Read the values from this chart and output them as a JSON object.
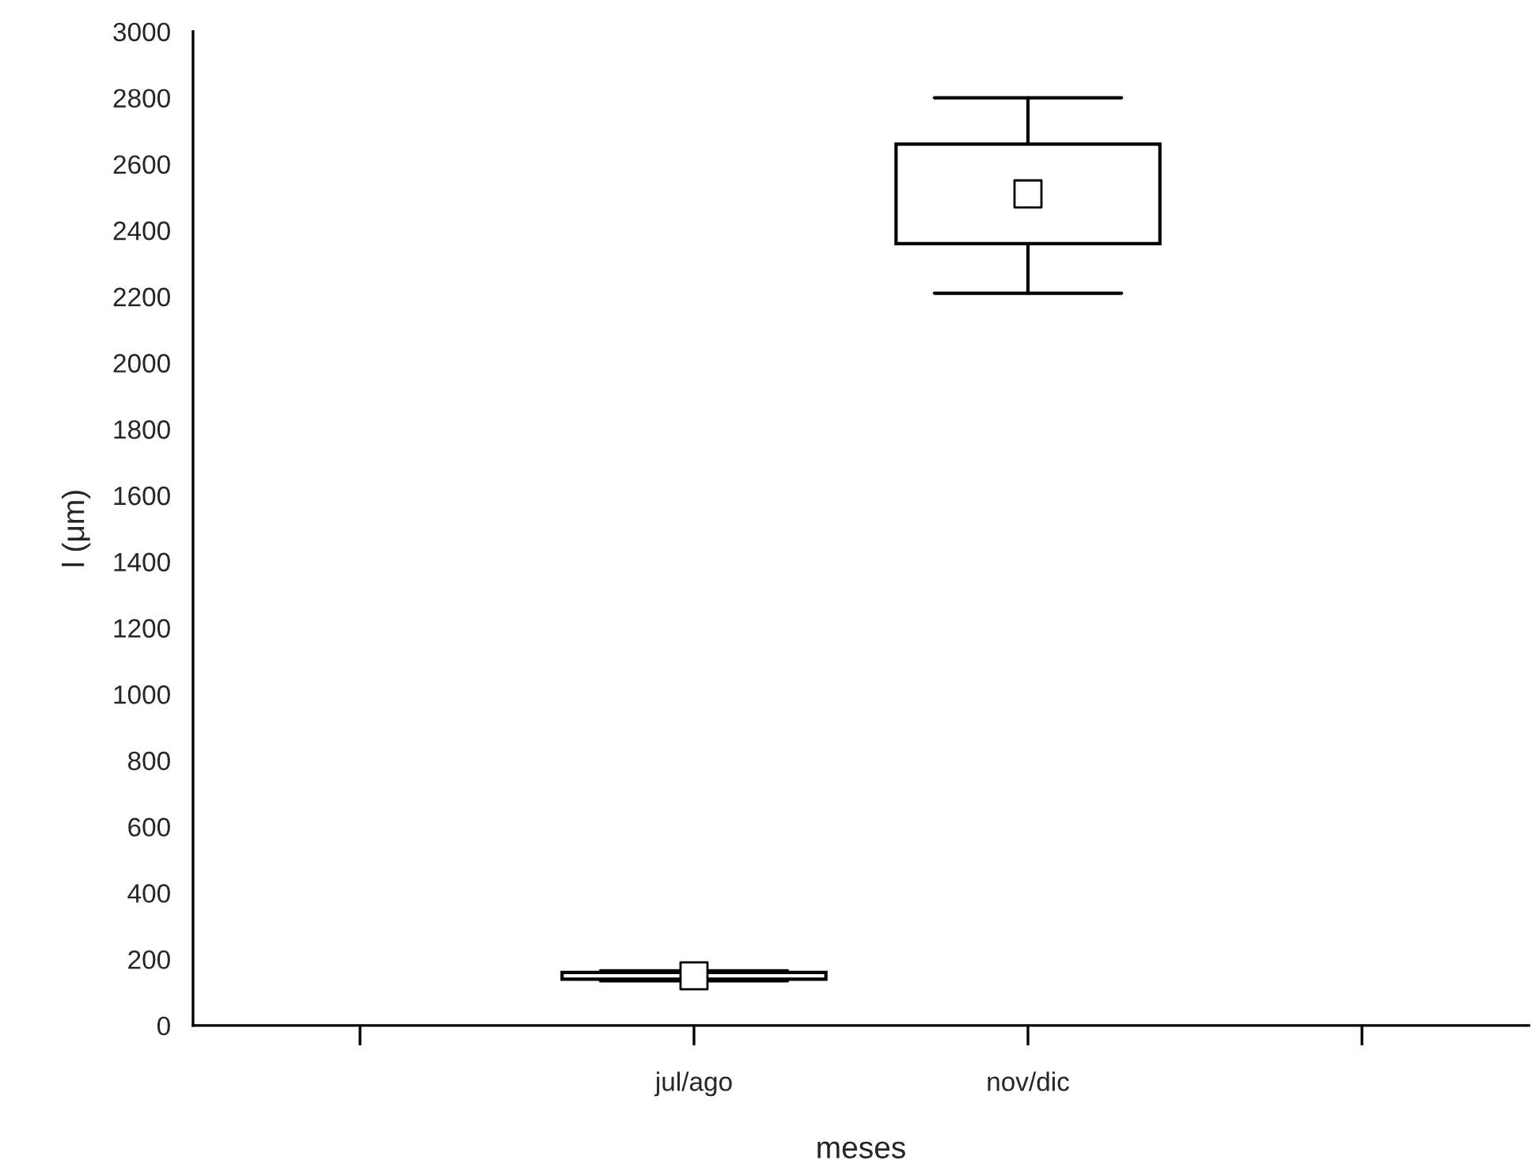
{
  "chart_data": {
    "type": "box",
    "xlabel": "meses",
    "ylabel": "l (μm)",
    "categories": [
      null,
      "jul/ago",
      "nov/dic",
      null
    ],
    "boxes": [
      null,
      {
        "low": 135,
        "q1": 140,
        "q3": 160,
        "high": 165,
        "mean": 150
      },
      {
        "low": 2210,
        "q1": 2360,
        "q3": 2660,
        "high": 2800,
        "mean": 2510
      },
      null
    ],
    "color": "#ffffff",
    "ylim": [
      0,
      3000
    ],
    "yticks": [
      0,
      200,
      400,
      600,
      800,
      1000,
      1200,
      1400,
      1600,
      1800,
      2000,
      2200,
      2400,
      2600,
      2800,
      3000
    ],
    "grid": false,
    "marker": "square"
  }
}
